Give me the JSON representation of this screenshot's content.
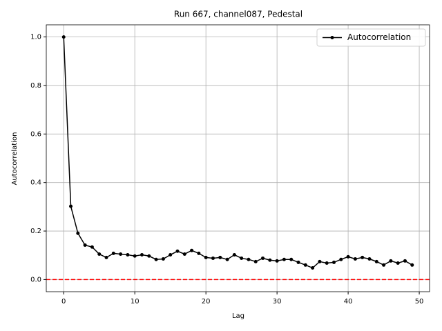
{
  "chart_data": {
    "type": "line",
    "title": "Run 667, channel087, Pedestal",
    "x_label": "Lag",
    "y_label": "Autocorrelation",
    "x": [
      0,
      1,
      2,
      3,
      4,
      5,
      6,
      7,
      8,
      9,
      10,
      11,
      12,
      13,
      14,
      15,
      16,
      17,
      18,
      19,
      20,
      21,
      22,
      23,
      24,
      25,
      26,
      27,
      28,
      29,
      30,
      31,
      32,
      33,
      34,
      35,
      36,
      37,
      38,
      39,
      40,
      41,
      42,
      43,
      44,
      45,
      46,
      47,
      48,
      49
    ],
    "series": [
      {
        "name": "Autocorrelation",
        "color": "#000000",
        "values": [
          1.0,
          0.302,
          0.191,
          0.142,
          0.134,
          0.105,
          0.091,
          0.108,
          0.105,
          0.102,
          0.097,
          0.102,
          0.097,
          0.083,
          0.085,
          0.102,
          0.117,
          0.105,
          0.12,
          0.108,
          0.091,
          0.088,
          0.091,
          0.083,
          0.102,
          0.088,
          0.083,
          0.074,
          0.088,
          0.08,
          0.077,
          0.083,
          0.083,
          0.071,
          0.06,
          0.048,
          0.074,
          0.068,
          0.071,
          0.083,
          0.094,
          0.085,
          0.091,
          0.085,
          0.074,
          0.06,
          0.077,
          0.068,
          0.077,
          0.06
        ]
      }
    ],
    "hlines": [
      {
        "value": 0,
        "color": "#ff0000",
        "dashed": true
      }
    ],
    "xlim": [
      -2.45,
      51.45
    ],
    "ylim": [
      -0.05,
      1.05
    ],
    "xticks": [
      0,
      10,
      20,
      30,
      40,
      50
    ],
    "yticks": [
      {
        "value": 0,
        "label": "0.0"
      },
      {
        "value": 0.2,
        "label": "0.2"
      },
      {
        "value": 0.4,
        "label": "0.4"
      },
      {
        "value": 0.6,
        "label": "0.6"
      },
      {
        "value": 0.8,
        "label": "0.8"
      },
      {
        "value": 1,
        "label": "1.0"
      }
    ],
    "grid": true,
    "legend": "upper-right"
  }
}
